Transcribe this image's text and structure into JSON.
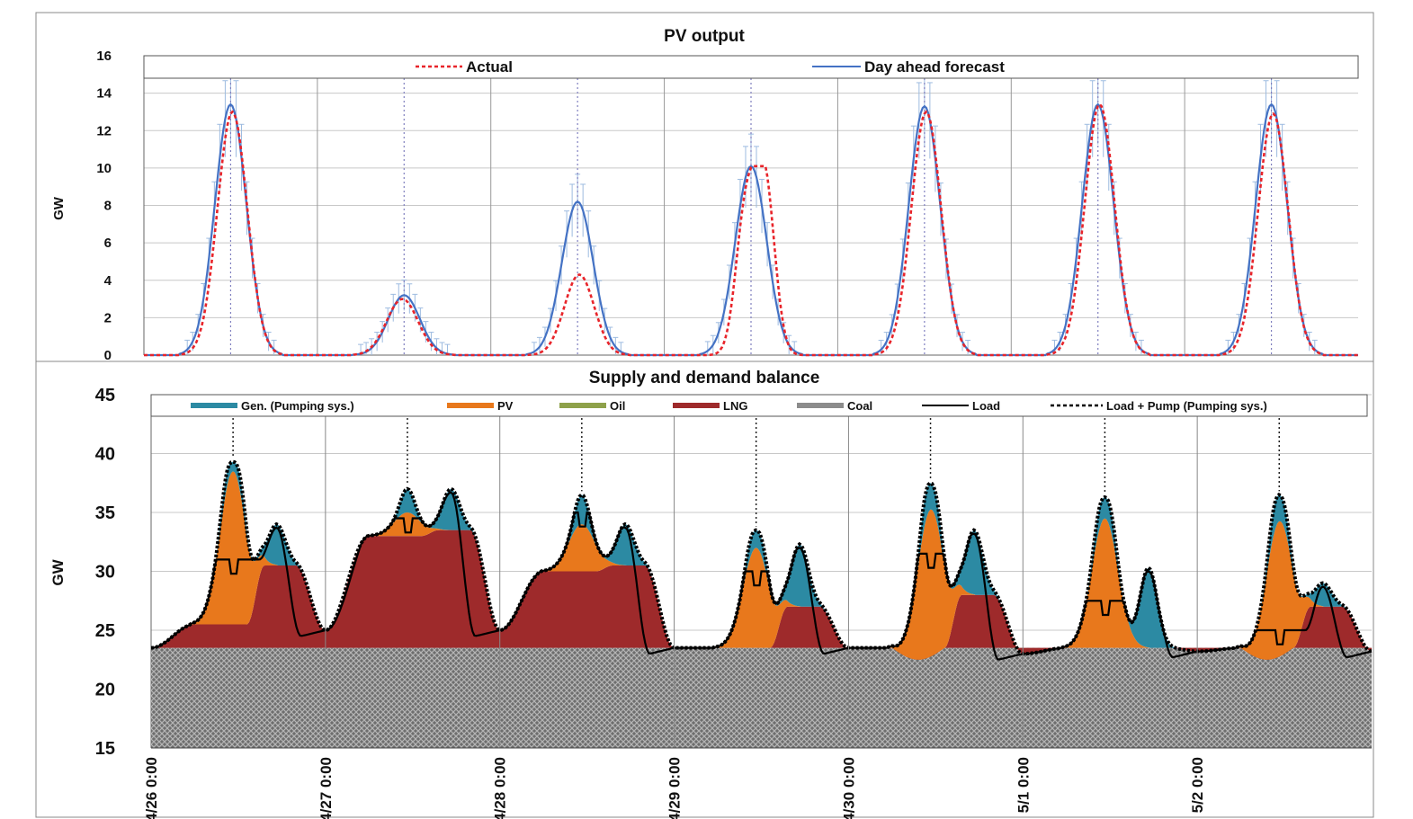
{
  "colors": {
    "actual": "#e8242a",
    "forecast": "#4472c4",
    "errorbar": "#9dbbe0",
    "gen_pumping": "#2c8aa3",
    "pv": "#e8781c",
    "oil": "#8ea14a",
    "lng": "#9e2a2b",
    "coal": "#8c8c8c",
    "load": "#000000",
    "grid": "#c8c8c8",
    "marker": "#7f7fbf"
  },
  "chart_data": [
    {
      "type": "line",
      "title": "PV output",
      "ylabel": "GW",
      "ylim": [
        0,
        16
      ],
      "yticks": [
        "0",
        "2",
        "4",
        "6",
        "8",
        "10",
        "12",
        "14",
        "16"
      ],
      "xlim_days": [
        0,
        7
      ],
      "legend_placement": "top",
      "grid": true,
      "series": [
        {
          "name": "Actual",
          "style": "dashed",
          "color": "actual",
          "daily_peaks": [
            13.0,
            3.0,
            4.3,
            10.1,
            13.0,
            13.4,
            12.9
          ]
        },
        {
          "name": "Day ahead forecast",
          "style": "solid",
          "color": "forecast",
          "error_bars": true,
          "daily_peaks": [
            13.4,
            3.2,
            8.2,
            10.1,
            13.3,
            13.4,
            13.4
          ]
        }
      ]
    },
    {
      "type": "area",
      "title": "Supply and demand balance",
      "ylabel": "GW",
      "ylim": [
        15,
        45
      ],
      "yticks": [
        "15",
        "20",
        "25",
        "30",
        "35",
        "40",
        "45"
      ],
      "x_tick_labels": [
        "4/26 0:00",
        "4/27 0:00",
        "4/28 0:00",
        "4/29 0:00",
        "4/30 0:00",
        "5/1 0:00",
        "5/2 0:00"
      ],
      "legend_placement": "top",
      "grid": true,
      "stack_series": [
        {
          "name": "Coal",
          "color": "coal"
        },
        {
          "name": "LNG",
          "color": "lng"
        },
        {
          "name": "Oil",
          "color": "oil"
        },
        {
          "name": "PV",
          "color": "pv"
        },
        {
          "name": "Gen. (Pumping sys.)",
          "color": "gen_pumping"
        }
      ],
      "line_series": [
        {
          "name": "Load",
          "style": "solid"
        },
        {
          "name": "Load + Pump (Pumping sys.)",
          "style": "dashed"
        }
      ],
      "legend_order": [
        "Gen. (Pumping sys.)",
        "PV",
        "Oil",
        "LNG",
        "Coal",
        "Load",
        "Load + Pump (Pumping sys.)"
      ],
      "coal_level": 23.5,
      "days": [
        {
          "night": 23.5,
          "lng_peak": 25.5,
          "lng_pm": 30.5,
          "pv_top_noon": 38.5,
          "total_peak": 39.3,
          "pm_peak": 34.0,
          "load_noon": 31.0
        },
        {
          "night": 25.0,
          "lng_peak": 33.0,
          "lng_pm": 33.5,
          "pv_top_noon": 35.0,
          "total_peak": 37.0,
          "pm_peak": 37.0,
          "load_noon": 34.5
        },
        {
          "night": 25.0,
          "lng_peak": 30.0,
          "lng_pm": 30.5,
          "pv_top_noon": 34.0,
          "total_peak": 36.5,
          "pm_peak": 34.0,
          "load_noon": 35.0
        },
        {
          "night": 23.5,
          "lng_peak": 23.5,
          "lng_pm": 27.0,
          "pv_top_noon": 32.0,
          "total_peak": 33.5,
          "pm_peak": 32.3,
          "load_noon": 30.0
        },
        {
          "night": 23.5,
          "lng_peak": 23.5,
          "lng_pm": 28.0,
          "pv_top_noon": 36.0,
          "total_peak": 37.5,
          "pm_peak": 33.5,
          "load_noon": 31.5
        },
        {
          "night": 23.0,
          "lng_peak": 21.5,
          "lng_pm": 23.5,
          "pv_top_noon": 34.5,
          "total_peak": 36.3,
          "pm_peak": 30.3,
          "load_noon": 27.5
        },
        {
          "night": 23.2,
          "lng_peak": 22.5,
          "lng_pm": 27.0,
          "pv_top_noon": 35.0,
          "total_peak": 36.5,
          "pm_peak": 29.0,
          "load_noon": 25.0
        }
      ]
    }
  ]
}
